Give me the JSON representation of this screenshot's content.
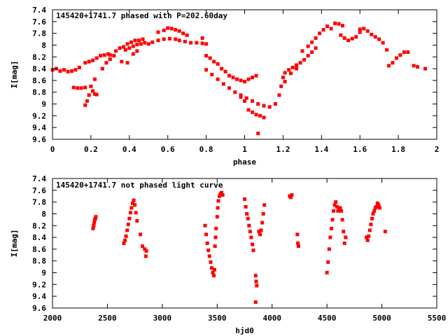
{
  "chart_data": [
    {
      "type": "scatter",
      "title": "145420+1741.7 phased with P=202.60day",
      "xlabel": "phase",
      "ylabel": "I[mag]",
      "xlim": [
        0,
        2
      ],
      "ylim": [
        7.4,
        9.6
      ],
      "y_inverted": true,
      "xticks": [
        "0",
        "0.2",
        "0.4",
        "0.6",
        "0.8",
        "1",
        "1.2",
        "1.4",
        "1.6",
        "1.8",
        "2"
      ],
      "yticks": [
        "7.4",
        "7.6",
        "7.8",
        "8",
        "8.2",
        "8.4",
        "8.6",
        "8.8",
        "9",
        "9.2",
        "9.4",
        "9.6"
      ],
      "grid": false,
      "marker_color": "#ff0000",
      "series": [
        {
          "points": [
            [
              0.0,
              8.42
            ],
            [
              0.02,
              8.4
            ],
            [
              0.04,
              8.44
            ],
            [
              0.06,
              8.42
            ],
            [
              0.08,
              8.45
            ],
            [
              0.1,
              8.44
            ],
            [
              0.12,
              8.42
            ],
            [
              0.14,
              8.38
            ],
            [
              0.11,
              8.72
            ],
            [
              0.13,
              8.73
            ],
            [
              0.15,
              8.73
            ],
            [
              0.17,
              8.72
            ],
            [
              0.17,
              8.3
            ],
            [
              0.19,
              8.28
            ],
            [
              0.21,
              8.26
            ],
            [
              0.23,
              8.22
            ],
            [
              0.25,
              8.18
            ],
            [
              0.27,
              8.17
            ],
            [
              0.17,
              9.02
            ],
            [
              0.18,
              8.95
            ],
            [
              0.19,
              8.85
            ],
            [
              0.2,
              8.7
            ],
            [
              0.21,
              8.78
            ],
            [
              0.22,
              8.83
            ],
            [
              0.23,
              8.84
            ],
            [
              0.22,
              8.58
            ],
            [
              0.26,
              8.4
            ],
            [
              0.28,
              8.3
            ],
            [
              0.3,
              8.24
            ],
            [
              0.32,
              8.18
            ],
            [
              0.29,
              8.15
            ],
            [
              0.33,
              8.1
            ],
            [
              0.35,
              8.05
            ],
            [
              0.37,
              8.03
            ],
            [
              0.38,
              8.08
            ],
            [
              0.4,
              8.05
            ],
            [
              0.42,
              8.02
            ],
            [
              0.44,
              7.99
            ],
            [
              0.46,
              7.98
            ],
            [
              0.48,
              7.96
            ],
            [
              0.5,
              7.98
            ],
            [
              0.52,
              7.95
            ],
            [
              0.55,
              7.92
            ],
            [
              0.58,
              7.9
            ],
            [
              0.61,
              7.89
            ],
            [
              0.64,
              7.9
            ],
            [
              0.66,
              7.92
            ],
            [
              0.69,
              7.94
            ],
            [
              0.72,
              7.96
            ],
            [
              0.39,
              7.98
            ],
            [
              0.41,
              7.95
            ],
            [
              0.43,
              7.92
            ],
            [
              0.45,
              7.92
            ],
            [
              0.47,
              7.9
            ],
            [
              0.55,
              7.78
            ],
            [
              0.58,
              7.75
            ],
            [
              0.6,
              7.71
            ],
            [
              0.62,
              7.72
            ],
            [
              0.64,
              7.74
            ],
            [
              0.66,
              7.76
            ],
            [
              0.68,
              7.8
            ],
            [
              0.7,
              7.83
            ],
            [
              0.36,
              8.28
            ],
            [
              0.39,
              8.3
            ],
            [
              0.42,
              8.15
            ],
            [
              0.44,
              8.1
            ],
            [
              0.3,
              8.17
            ],
            [
              0.75,
              7.96
            ],
            [
              0.78,
              7.97
            ],
            [
              0.8,
              7.98
            ],
            [
              0.78,
              7.88
            ],
            [
              0.8,
              8.18
            ],
            [
              0.82,
              8.22
            ],
            [
              0.84,
              8.28
            ],
            [
              0.86,
              8.32
            ],
            [
              0.88,
              8.4
            ],
            [
              0.9,
              8.45
            ],
            [
              0.92,
              8.52
            ],
            [
              0.94,
              8.55
            ],
            [
              0.96,
              8.58
            ],
            [
              0.98,
              8.6
            ],
            [
              0.8,
              8.42
            ],
            [
              0.83,
              8.5
            ],
            [
              0.86,
              8.58
            ],
            [
              0.89,
              8.66
            ],
            [
              0.92,
              8.73
            ],
            [
              0.95,
              8.8
            ],
            [
              0.98,
              8.85
            ],
            [
              1.01,
              8.9
            ],
            [
              1.04,
              8.95
            ],
            [
              1.07,
              9.0
            ],
            [
              1.1,
              9.03
            ],
            [
              1.13,
              9.05
            ],
            [
              1.16,
              9.0
            ],
            [
              0.98,
              8.88
            ],
            [
              1.0,
              8.95
            ],
            [
              1.02,
              9.1
            ],
            [
              1.04,
              9.14
            ],
            [
              1.06,
              9.18
            ],
            [
              1.08,
              9.2
            ],
            [
              1.1,
              9.23
            ],
            [
              1.07,
              9.5
            ],
            [
              1.0,
              8.62
            ],
            [
              1.02,
              8.58
            ],
            [
              1.04,
              8.55
            ],
            [
              1.06,
              8.52
            ],
            [
              1.18,
              8.85
            ],
            [
              1.19,
              8.7
            ],
            [
              1.2,
              8.55
            ],
            [
              1.21,
              8.47
            ],
            [
              1.23,
              8.42
            ],
            [
              1.25,
              8.38
            ],
            [
              1.27,
              8.34
            ],
            [
              1.29,
              8.3
            ],
            [
              1.31,
              8.25
            ],
            [
              1.33,
              8.18
            ],
            [
              1.35,
              8.12
            ],
            [
              1.37,
              8.05
            ],
            [
              1.21,
              8.62
            ],
            [
              1.24,
              8.48
            ],
            [
              1.27,
              8.4
            ],
            [
              1.3,
              8.1
            ],
            [
              1.33,
              8.02
            ],
            [
              1.35,
              7.95
            ],
            [
              1.37,
              7.88
            ],
            [
              1.39,
              7.8
            ],
            [
              1.41,
              7.74
            ],
            [
              1.43,
              7.68
            ],
            [
              1.45,
              7.72
            ],
            [
              1.47,
              7.63
            ],
            [
              1.49,
              7.64
            ],
            [
              1.51,
              7.67
            ],
            [
              1.5,
              7.83
            ],
            [
              1.52,
              7.88
            ],
            [
              1.54,
              7.92
            ],
            [
              1.56,
              7.89
            ],
            [
              1.58,
              7.86
            ],
            [
              1.6,
              7.78
            ],
            [
              1.6,
              7.73
            ],
            [
              1.62,
              7.72
            ],
            [
              1.64,
              7.76
            ],
            [
              1.66,
              7.82
            ],
            [
              1.68,
              7.86
            ],
            [
              1.7,
              7.9
            ],
            [
              1.72,
              7.96
            ],
            [
              1.74,
              8.08
            ],
            [
              1.75,
              8.35
            ],
            [
              1.77,
              8.3
            ],
            [
              1.79,
              8.22
            ],
            [
              1.81,
              8.17
            ],
            [
              1.83,
              8.12
            ],
            [
              1.88,
              8.35
            ],
            [
              1.9,
              8.37
            ],
            [
              1.94,
              8.4
            ],
            [
              1.85,
              8.12
            ]
          ]
        }
      ]
    },
    {
      "type": "scatter",
      "title": "145420+1741.7 not phased light curve",
      "xlabel": "hjd0",
      "ylabel": "I[mag]",
      "xlim": [
        2000,
        5500
      ],
      "ylim": [
        7.4,
        9.6
      ],
      "y_inverted": true,
      "xticks": [
        "2000",
        "2500",
        "3000",
        "3500",
        "4000",
        "4500",
        "5000",
        "5500"
      ],
      "yticks": [
        "7.4",
        "7.6",
        "7.8",
        "8",
        "8.2",
        "8.4",
        "8.6",
        "8.8",
        "9",
        "9.2",
        "9.4",
        "9.6"
      ],
      "grid": false,
      "marker_color": "#ff0000",
      "series": [
        {
          "points": [
            [
              2370,
              8.25
            ],
            [
              2375,
              8.2
            ],
            [
              2380,
              8.15
            ],
            [
              2385,
              8.1
            ],
            [
              2390,
              8.08
            ],
            [
              2395,
              8.05
            ],
            [
              2650,
              8.5
            ],
            [
              2660,
              8.45
            ],
            [
              2670,
              8.38
            ],
            [
              2680,
              8.28
            ],
            [
              2690,
              8.18
            ],
            [
              2700,
              8.08
            ],
            [
              2710,
              7.98
            ],
            [
              2720,
              7.9
            ],
            [
              2730,
              7.82
            ],
            [
              2740,
              7.77
            ],
            [
              2750,
              7.85
            ],
            [
              2760,
              7.98
            ],
            [
              2770,
              8.12
            ],
            [
              2800,
              8.35
            ],
            [
              2820,
              8.55
            ],
            [
              2840,
              8.6
            ],
            [
              2850,
              8.72
            ],
            [
              2855,
              8.63
            ],
            [
              3390,
              8.2
            ],
            [
              3400,
              8.35
            ],
            [
              3410,
              8.5
            ],
            [
              3420,
              8.62
            ],
            [
              3430,
              8.72
            ],
            [
              3440,
              8.82
            ],
            [
              3450,
              8.92
            ],
            [
              3460,
              9.0
            ],
            [
              3470,
              9.05
            ],
            [
              3475,
              8.95
            ],
            [
              3480,
              8.55
            ],
            [
              3485,
              8.4
            ],
            [
              3490,
              8.25
            ],
            [
              3500,
              8.05
            ],
            [
              3505,
              7.9
            ],
            [
              3510,
              7.78
            ],
            [
              3520,
              7.7
            ],
            [
              3530,
              7.66
            ],
            [
              3540,
              7.64
            ],
            [
              3550,
              7.68
            ],
            [
              3750,
              7.75
            ],
            [
              3760,
              7.88
            ],
            [
              3770,
              8.0
            ],
            [
              3780,
              8.08
            ],
            [
              3790,
              8.2
            ],
            [
              3800,
              8.3
            ],
            [
              3810,
              8.4
            ],
            [
              3820,
              8.52
            ],
            [
              3830,
              8.62
            ],
            [
              3850,
              9.05
            ],
            [
              3855,
              9.15
            ],
            [
              3860,
              9.22
            ],
            [
              3850,
              9.5
            ],
            [
              3880,
              8.3
            ],
            [
              3890,
              8.35
            ],
            [
              3900,
              8.28
            ],
            [
              3910,
              8.15
            ],
            [
              3920,
              8.0
            ],
            [
              3930,
              7.85
            ],
            [
              4160,
              7.7
            ],
            [
              4170,
              7.72
            ],
            [
              4180,
              7.68
            ],
            [
              4230,
              8.35
            ],
            [
              4235,
              8.5
            ],
            [
              4240,
              8.55
            ],
            [
              4500,
              9.0
            ],
            [
              4510,
              8.82
            ],
            [
              4520,
              8.6
            ],
            [
              4530,
              8.4
            ],
            [
              4540,
              8.25
            ],
            [
              4550,
              8.1
            ],
            [
              4560,
              7.95
            ],
            [
              4570,
              7.85
            ],
            [
              4580,
              7.8
            ],
            [
              4590,
              7.88
            ],
            [
              4600,
              7.95
            ],
            [
              4610,
              7.92
            ],
            [
              4620,
              7.9
            ],
            [
              4630,
              7.95
            ],
            [
              4640,
              8.1
            ],
            [
              4650,
              8.3
            ],
            [
              4660,
              8.5
            ],
            [
              4670,
              8.4
            ],
            [
              4860,
              8.4
            ],
            [
              4870,
              8.45
            ],
            [
              4880,
              8.38
            ],
            [
              4890,
              8.28
            ],
            [
              4900,
              8.18
            ],
            [
              4910,
              8.08
            ],
            [
              4920,
              8.0
            ],
            [
              4930,
              7.95
            ],
            [
              4940,
              7.9
            ],
            [
              4950,
              7.88
            ],
            [
              4960,
              7.82
            ],
            [
              4970,
              7.85
            ],
            [
              4980,
              7.9
            ],
            [
              5030,
              8.3
            ]
          ]
        }
      ]
    }
  ]
}
